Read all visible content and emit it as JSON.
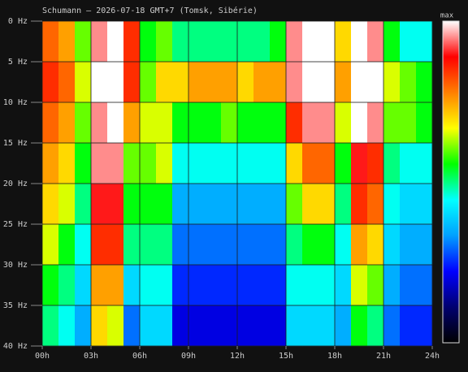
{
  "chart_data": {
    "type": "heatmap",
    "title": "Schumann — 2026-07-18 GMT+7  (Tomsk, Sibérie)",
    "colorbar_label": "max",
    "xlim": [
      0,
      24
    ],
    "ylim": [
      0,
      40
    ],
    "y_inverted": true,
    "grid": true,
    "xticks": [
      {
        "value": 0,
        "label": "00h"
      },
      {
        "value": 3,
        "label": "03h"
      },
      {
        "value": 6,
        "label": "06h"
      },
      {
        "value": 9,
        "label": "09h"
      },
      {
        "value": 12,
        "label": "12h"
      },
      {
        "value": 15,
        "label": "15h"
      },
      {
        "value": 18,
        "label": "18h"
      },
      {
        "value": 21,
        "label": "21h"
      },
      {
        "value": 24,
        "label": "24h"
      }
    ],
    "yticks": [
      {
        "value": 0,
        "label": "0 Hz"
      },
      {
        "value": 5,
        "label": "5 Hz"
      },
      {
        "value": 10,
        "label": "10 Hz"
      },
      {
        "value": 15,
        "label": "15 Hz"
      },
      {
        "value": 20,
        "label": "20 Hz"
      },
      {
        "value": 25,
        "label": "25 Hz"
      },
      {
        "value": 30,
        "label": "30 Hz"
      },
      {
        "value": 35,
        "label": "35 Hz"
      },
      {
        "value": 40,
        "label": "40 Hz"
      }
    ],
    "xbins": [
      0,
      1,
      2,
      3,
      4,
      5,
      6,
      7,
      8,
      9,
      10,
      11,
      12,
      13,
      14,
      15,
      16,
      17,
      18,
      19,
      20,
      21,
      22,
      23,
      24
    ],
    "ybins": [
      0,
      5,
      10,
      15,
      20,
      25,
      30,
      35,
      40
    ],
    "zlim": [
      0,
      1
    ],
    "colormap": [
      "#000000",
      "#000070",
      "#0000ff",
      "#00a0ff",
      "#00ffff",
      "#00ff00",
      "#ffff00",
      "#ff8000",
      "#ff0000",
      "#ffffff"
    ],
    "z": [
      [
        0.8,
        0.75,
        0.6,
        0.95,
        1,
        0.85,
        0.55,
        0.6,
        0.5,
        0.5,
        0.5,
        0.5,
        0.5,
        0.5,
        0.55,
        0.95,
        1,
        1,
        0.7,
        1,
        0.95,
        0.55,
        0.45,
        0.45
      ],
      [
        0.85,
        0.8,
        0.65,
        1,
        1,
        0.85,
        0.6,
        0.7,
        0.7,
        0.75,
        0.75,
        0.75,
        0.7,
        0.75,
        0.75,
        0.95,
        1,
        1,
        0.75,
        1,
        1,
        0.65,
        0.6,
        0.55
      ],
      [
        0.8,
        0.75,
        0.6,
        0.95,
        1,
        0.75,
        0.65,
        0.65,
        0.55,
        0.55,
        0.55,
        0.6,
        0.55,
        0.55,
        0.55,
        0.85,
        0.95,
        0.95,
        0.65,
        1,
        0.95,
        0.6,
        0.6,
        0.55
      ],
      [
        0.75,
        0.7,
        0.55,
        0.95,
        0.95,
        0.6,
        0.6,
        0.65,
        0.45,
        0.45,
        0.45,
        0.45,
        0.45,
        0.45,
        0.45,
        0.7,
        0.8,
        0.8,
        0.55,
        0.9,
        0.85,
        0.5,
        0.45,
        0.45
      ],
      [
        0.7,
        0.65,
        0.5,
        0.9,
        0.9,
        0.55,
        0.55,
        0.55,
        0.35,
        0.35,
        0.35,
        0.35,
        0.35,
        0.35,
        0.35,
        0.6,
        0.7,
        0.7,
        0.5,
        0.85,
        0.8,
        0.45,
        0.4,
        0.4
      ],
      [
        0.65,
        0.55,
        0.45,
        0.85,
        0.85,
        0.5,
        0.5,
        0.5,
        0.3,
        0.3,
        0.3,
        0.3,
        0.3,
        0.3,
        0.3,
        0.5,
        0.55,
        0.55,
        0.45,
        0.75,
        0.7,
        0.4,
        0.35,
        0.35
      ],
      [
        0.55,
        0.5,
        0.4,
        0.75,
        0.75,
        0.4,
        0.45,
        0.45,
        0.25,
        0.25,
        0.25,
        0.25,
        0.25,
        0.25,
        0.25,
        0.45,
        0.45,
        0.45,
        0.4,
        0.65,
        0.6,
        0.35,
        0.3,
        0.3
      ],
      [
        0.5,
        0.45,
        0.35,
        0.7,
        0.65,
        0.3,
        0.4,
        0.4,
        0.2,
        0.2,
        0.2,
        0.2,
        0.2,
        0.2,
        0.2,
        0.4,
        0.4,
        0.4,
        0.35,
        0.55,
        0.5,
        0.3,
        0.25,
        0.25
      ]
    ]
  }
}
